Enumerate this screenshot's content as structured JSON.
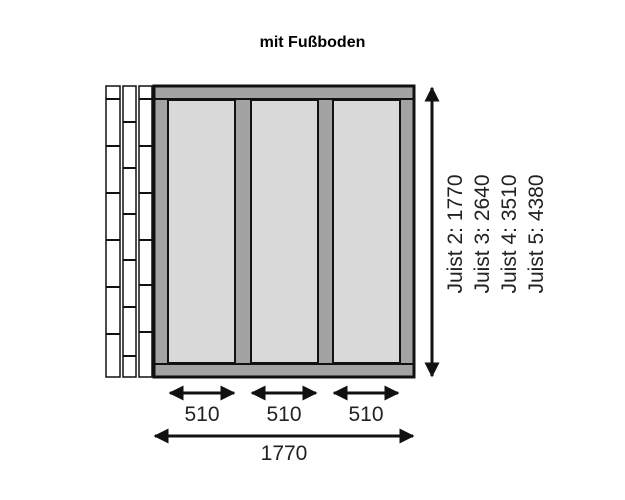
{
  "title": "mit Fußboden",
  "dimensions": {
    "bay_widths": [
      "510",
      "510",
      "510"
    ],
    "total_width": "1770",
    "depths": [
      "Juist 2: 1770",
      "Juist 3: 2640",
      "Juist 4: 3510",
      "Juist 5: 4380"
    ]
  },
  "colors": {
    "beam": "#a3a3a3",
    "panel": "#d9d9d9",
    "outline": "#111111"
  }
}
